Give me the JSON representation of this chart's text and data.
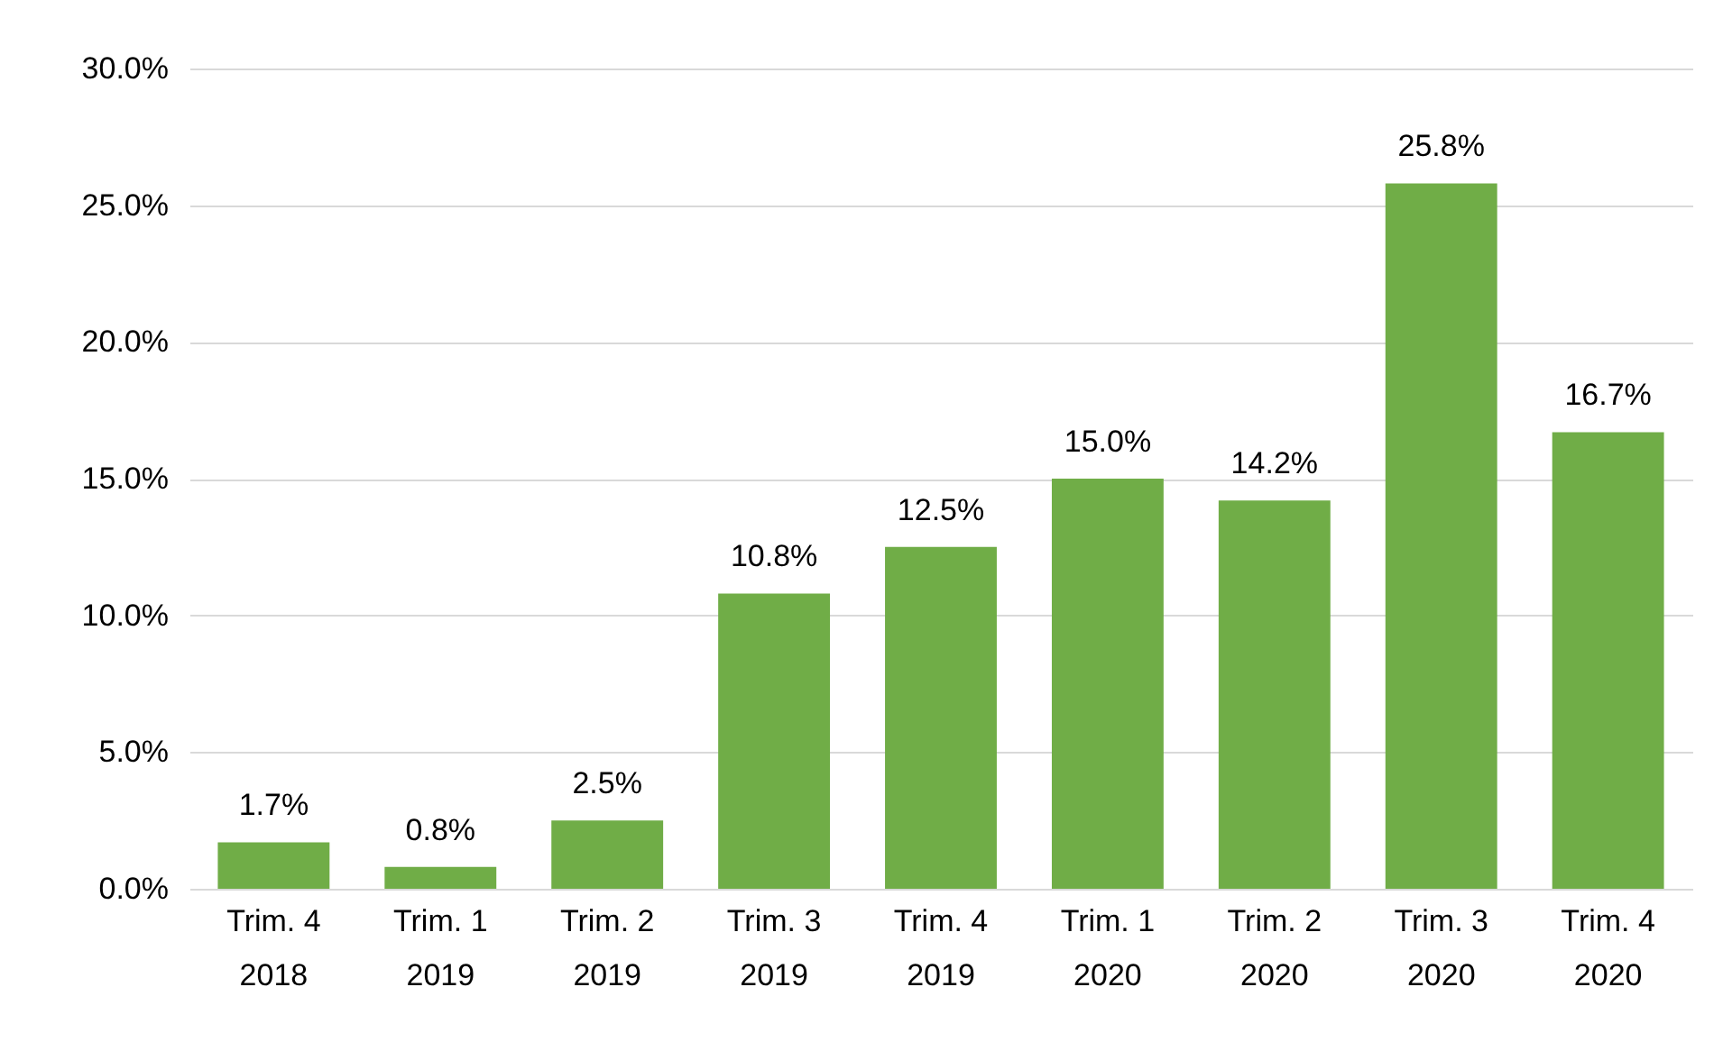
{
  "chart_data": {
    "type": "bar",
    "categories": [
      "Trim. 4\n2018",
      "Trim. 1\n2019",
      "Trim. 2\n2019",
      "Trim. 3\n2019",
      "Trim. 4\n2019",
      "Trim. 1\n2020",
      "Trim. 2\n2020",
      "Trim. 3\n2020",
      "Trim. 4\n2020"
    ],
    "values": [
      1.7,
      0.8,
      2.5,
      10.8,
      12.5,
      15.0,
      14.2,
      25.8,
      16.7
    ],
    "value_labels": [
      "1.7%",
      "0.8%",
      "2.5%",
      "10.8%",
      "12.5%",
      "15.0%",
      "14.2%",
      "25.8%",
      "16.7%"
    ],
    "color": "#70ad47",
    "ylim": [
      0,
      30
    ],
    "yticks": [
      {
        "value": 0,
        "label": "0.0%"
      },
      {
        "value": 5,
        "label": "5.0%"
      },
      {
        "value": 10,
        "label": "10.0%"
      },
      {
        "value": 15,
        "label": "15.0%"
      },
      {
        "value": 20,
        "label": "20.0%"
      },
      {
        "value": 25,
        "label": "25.0%"
      },
      {
        "value": 30,
        "label": "30.0%"
      }
    ],
    "grid": "y"
  }
}
